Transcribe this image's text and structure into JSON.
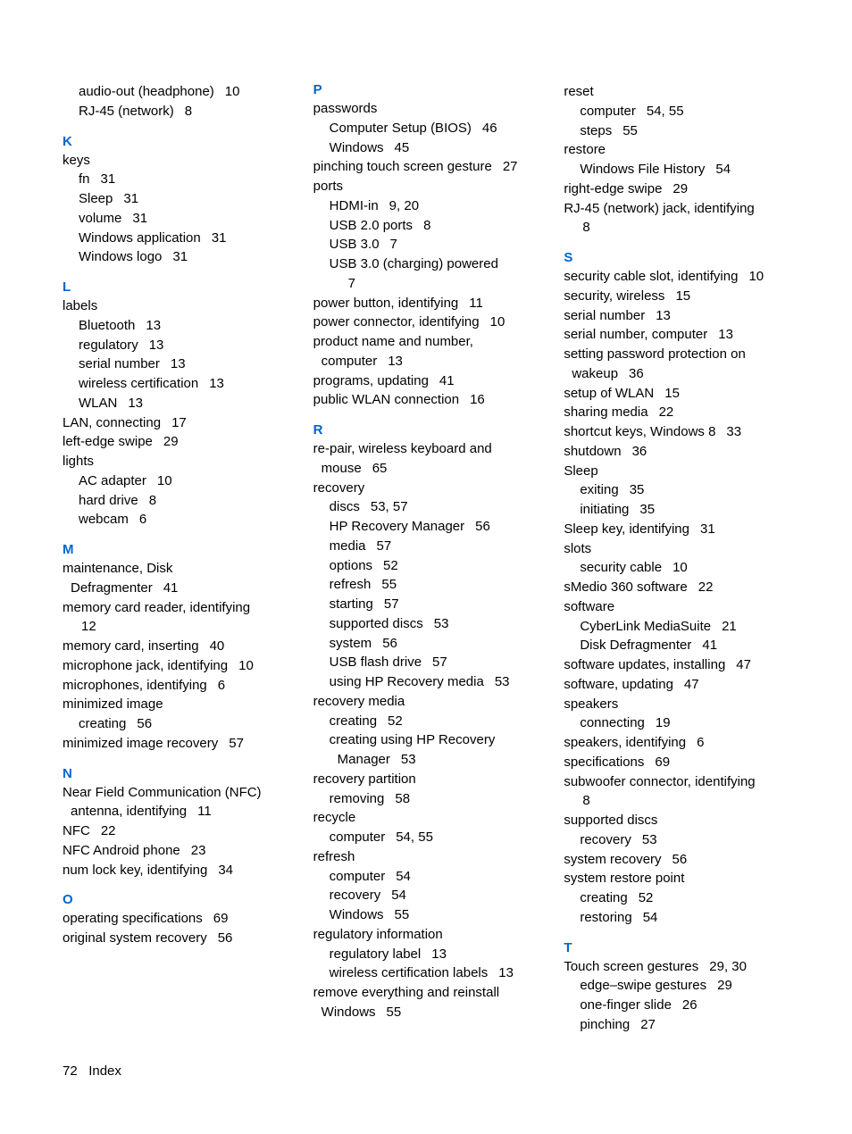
{
  "page_number": "72",
  "footer_label": "Index",
  "heading_color": "#0066cc",
  "text_color": "#000000",
  "font_family": "Arial",
  "base_fontsize": 15,
  "columns": [
    {
      "items": [
        {
          "type": "sub",
          "text": "audio-out (headphone)",
          "pages": "10"
        },
        {
          "type": "sub",
          "text": "RJ-45 (network)",
          "pages": "8"
        },
        {
          "type": "letter",
          "text": "K"
        },
        {
          "type": "entry",
          "text": "keys",
          "pages": ""
        },
        {
          "type": "sub",
          "text": "fn",
          "pages": "31"
        },
        {
          "type": "sub",
          "text": "Sleep",
          "pages": "31"
        },
        {
          "type": "sub",
          "text": "volume",
          "pages": "31"
        },
        {
          "type": "sub",
          "text": "Windows application",
          "pages": "31"
        },
        {
          "type": "sub",
          "text": "Windows logo",
          "pages": "31"
        },
        {
          "type": "letter",
          "text": "L"
        },
        {
          "type": "entry",
          "text": "labels",
          "pages": ""
        },
        {
          "type": "sub",
          "text": "Bluetooth",
          "pages": "13"
        },
        {
          "type": "sub",
          "text": "regulatory",
          "pages": "13"
        },
        {
          "type": "sub",
          "text": "serial number",
          "pages": "13"
        },
        {
          "type": "sub",
          "text": "wireless certification",
          "pages": "13"
        },
        {
          "type": "sub",
          "text": "WLAN",
          "pages": "13"
        },
        {
          "type": "entry",
          "text": "LAN, connecting",
          "pages": "17"
        },
        {
          "type": "entry",
          "text": "left-edge swipe",
          "pages": "29"
        },
        {
          "type": "entry",
          "text": "lights",
          "pages": ""
        },
        {
          "type": "sub",
          "text": "AC adapter",
          "pages": "10"
        },
        {
          "type": "sub",
          "text": "hard drive",
          "pages": "8"
        },
        {
          "type": "sub",
          "text": "webcam",
          "pages": "6"
        },
        {
          "type": "letter",
          "text": "M"
        },
        {
          "type": "entry",
          "text": "maintenance, Disk",
          "pages": ""
        },
        {
          "type": "cont",
          "text": "Defragmenter",
          "pages": "41"
        },
        {
          "type": "entry",
          "text": "memory card reader, identifying",
          "pages": ""
        },
        {
          "type": "cont",
          "text": "",
          "pages": "12"
        },
        {
          "type": "entry",
          "text": "memory card, inserting",
          "pages": "40"
        },
        {
          "type": "entry",
          "text": "microphone jack, identifying",
          "pages": "10"
        },
        {
          "type": "entry",
          "text": "microphones, identifying",
          "pages": "6"
        },
        {
          "type": "entry",
          "text": "minimized image",
          "pages": ""
        },
        {
          "type": "sub",
          "text": "creating",
          "pages": "56"
        },
        {
          "type": "entry",
          "text": "minimized image recovery",
          "pages": "57"
        },
        {
          "type": "letter",
          "text": "N"
        },
        {
          "type": "entry",
          "text": "Near Field Communication (NFC)",
          "pages": ""
        },
        {
          "type": "cont",
          "text": "antenna, identifying",
          "pages": "11"
        },
        {
          "type": "entry",
          "text": "NFC",
          "pages": "22"
        },
        {
          "type": "entry",
          "text": "NFC Android phone",
          "pages": "23"
        },
        {
          "type": "entry",
          "text": "num lock key, identifying",
          "pages": "34"
        },
        {
          "type": "letter",
          "text": "O"
        },
        {
          "type": "entry",
          "text": "operating specifications",
          "pages": "69"
        },
        {
          "type": "entry",
          "text": "original system recovery",
          "pages": "56"
        }
      ]
    },
    {
      "items": [
        {
          "type": "letter",
          "text": "P",
          "first": true
        },
        {
          "type": "entry",
          "text": "passwords",
          "pages": ""
        },
        {
          "type": "sub",
          "text": "Computer Setup (BIOS)",
          "pages": "46"
        },
        {
          "type": "sub",
          "text": "Windows",
          "pages": "45"
        },
        {
          "type": "entry",
          "text": "pinching touch screen gesture",
          "pages": "27"
        },
        {
          "type": "entry",
          "text": "ports",
          "pages": ""
        },
        {
          "type": "sub",
          "text": "HDMI-in",
          "pages": "9, 20"
        },
        {
          "type": "sub",
          "text": "USB 2.0 ports",
          "pages": "8"
        },
        {
          "type": "sub",
          "text": "USB 3.0",
          "pages": "7"
        },
        {
          "type": "sub",
          "text": "USB 3.0 (charging) powered",
          "pages": ""
        },
        {
          "type": "subsub",
          "text": "",
          "pages": "7"
        },
        {
          "type": "entry",
          "text": "power button, identifying",
          "pages": "11"
        },
        {
          "type": "entry",
          "text": "power connector, identifying",
          "pages": "10"
        },
        {
          "type": "entry",
          "text": "product name and number,",
          "pages": ""
        },
        {
          "type": "cont",
          "text": "computer",
          "pages": "13"
        },
        {
          "type": "entry",
          "text": "programs, updating",
          "pages": "41"
        },
        {
          "type": "entry",
          "text": "public WLAN connection",
          "pages": "16"
        },
        {
          "type": "letter",
          "text": "R"
        },
        {
          "type": "entry",
          "text": "re-pair, wireless keyboard and",
          "pages": ""
        },
        {
          "type": "cont",
          "text": "mouse",
          "pages": "65"
        },
        {
          "type": "entry",
          "text": "recovery",
          "pages": ""
        },
        {
          "type": "sub",
          "text": "discs",
          "pages": "53, 57"
        },
        {
          "type": "sub",
          "text": "HP Recovery Manager",
          "pages": "56"
        },
        {
          "type": "sub",
          "text": "media",
          "pages": "57"
        },
        {
          "type": "sub",
          "text": "options",
          "pages": "52"
        },
        {
          "type": "sub",
          "text": "refresh",
          "pages": "55"
        },
        {
          "type": "sub",
          "text": "starting",
          "pages": "57"
        },
        {
          "type": "sub",
          "text": "supported discs",
          "pages": "53"
        },
        {
          "type": "sub",
          "text": "system",
          "pages": "56"
        },
        {
          "type": "sub",
          "text": "USB flash drive",
          "pages": "57"
        },
        {
          "type": "sub",
          "text": "using HP Recovery media",
          "pages": "53"
        },
        {
          "type": "entry",
          "text": "recovery media",
          "pages": ""
        },
        {
          "type": "sub",
          "text": "creating",
          "pages": "52"
        },
        {
          "type": "sub",
          "text": "creating using HP Recovery",
          "pages": ""
        },
        {
          "type": "subsub",
          "text": "Manager",
          "pages": "53"
        },
        {
          "type": "entry",
          "text": "recovery partition",
          "pages": ""
        },
        {
          "type": "sub",
          "text": "removing",
          "pages": "58"
        },
        {
          "type": "entry",
          "text": "recycle",
          "pages": ""
        },
        {
          "type": "sub",
          "text": "computer",
          "pages": "54, 55"
        },
        {
          "type": "entry",
          "text": "refresh",
          "pages": ""
        },
        {
          "type": "sub",
          "text": "computer",
          "pages": "54"
        },
        {
          "type": "sub",
          "text": "recovery",
          "pages": "54"
        },
        {
          "type": "sub",
          "text": "Windows",
          "pages": "55"
        },
        {
          "type": "entry",
          "text": "regulatory information",
          "pages": ""
        },
        {
          "type": "sub",
          "text": "regulatory label",
          "pages": "13"
        },
        {
          "type": "sub",
          "text": "wireless certification labels",
          "pages": "13"
        },
        {
          "type": "entry",
          "text": "remove everything and reinstall",
          "pages": ""
        },
        {
          "type": "cont",
          "text": "Windows",
          "pages": "55"
        }
      ]
    },
    {
      "items": [
        {
          "type": "entry",
          "text": "reset",
          "pages": ""
        },
        {
          "type": "sub",
          "text": "computer",
          "pages": "54, 55"
        },
        {
          "type": "sub",
          "text": "steps",
          "pages": "55"
        },
        {
          "type": "entry",
          "text": "restore",
          "pages": ""
        },
        {
          "type": "sub",
          "text": "Windows File History",
          "pages": "54"
        },
        {
          "type": "entry",
          "text": "right-edge swipe",
          "pages": "29"
        },
        {
          "type": "entry",
          "text": "RJ-45 (network) jack, identifying",
          "pages": ""
        },
        {
          "type": "cont",
          "text": "",
          "pages": "8"
        },
        {
          "type": "letter",
          "text": "S"
        },
        {
          "type": "entry",
          "text": "security cable slot, identifying",
          "pages": "10"
        },
        {
          "type": "entry",
          "text": "security, wireless",
          "pages": "15"
        },
        {
          "type": "entry",
          "text": "serial number",
          "pages": "13"
        },
        {
          "type": "entry",
          "text": "serial number, computer",
          "pages": "13"
        },
        {
          "type": "entry",
          "text": "setting password protection on",
          "pages": ""
        },
        {
          "type": "cont",
          "text": "wakeup",
          "pages": "36"
        },
        {
          "type": "entry",
          "text": "setup of WLAN",
          "pages": "15"
        },
        {
          "type": "entry",
          "text": "sharing media",
          "pages": "22"
        },
        {
          "type": "entry",
          "text": "shortcut keys, Windows 8",
          "pages": "33"
        },
        {
          "type": "entry",
          "text": "shutdown",
          "pages": "36"
        },
        {
          "type": "entry",
          "text": "Sleep",
          "pages": ""
        },
        {
          "type": "sub",
          "text": "exiting",
          "pages": "35"
        },
        {
          "type": "sub",
          "text": "initiating",
          "pages": "35"
        },
        {
          "type": "entry",
          "text": "Sleep key, identifying",
          "pages": "31"
        },
        {
          "type": "entry",
          "text": "slots",
          "pages": ""
        },
        {
          "type": "sub",
          "text": "security cable",
          "pages": "10"
        },
        {
          "type": "entry",
          "text": "sMedio 360 software",
          "pages": "22"
        },
        {
          "type": "entry",
          "text": "software",
          "pages": ""
        },
        {
          "type": "sub",
          "text": "CyberLink MediaSuite",
          "pages": "21"
        },
        {
          "type": "sub",
          "text": "Disk Defragmenter",
          "pages": "41"
        },
        {
          "type": "entry",
          "text": "software updates, installing",
          "pages": "47"
        },
        {
          "type": "entry",
          "text": "software, updating",
          "pages": "47"
        },
        {
          "type": "entry",
          "text": "speakers",
          "pages": ""
        },
        {
          "type": "sub",
          "text": "connecting",
          "pages": "19"
        },
        {
          "type": "entry",
          "text": "speakers, identifying",
          "pages": "6"
        },
        {
          "type": "entry",
          "text": "specifications",
          "pages": "69"
        },
        {
          "type": "entry",
          "text": "subwoofer connector, identifying",
          "pages": ""
        },
        {
          "type": "cont",
          "text": "",
          "pages": "8"
        },
        {
          "type": "entry",
          "text": "supported discs",
          "pages": ""
        },
        {
          "type": "sub",
          "text": "recovery",
          "pages": "53"
        },
        {
          "type": "entry",
          "text": "system recovery",
          "pages": "56"
        },
        {
          "type": "entry",
          "text": "system restore point",
          "pages": ""
        },
        {
          "type": "sub",
          "text": "creating",
          "pages": "52"
        },
        {
          "type": "sub",
          "text": "restoring",
          "pages": "54"
        },
        {
          "type": "letter",
          "text": "T"
        },
        {
          "type": "entry",
          "text": "Touch screen gestures",
          "pages": "29, 30"
        },
        {
          "type": "sub",
          "text": "edge–swipe gestures",
          "pages": "29"
        },
        {
          "type": "sub",
          "text": "one-finger slide",
          "pages": "26"
        },
        {
          "type": "sub",
          "text": "pinching",
          "pages": "27"
        }
      ]
    }
  ]
}
